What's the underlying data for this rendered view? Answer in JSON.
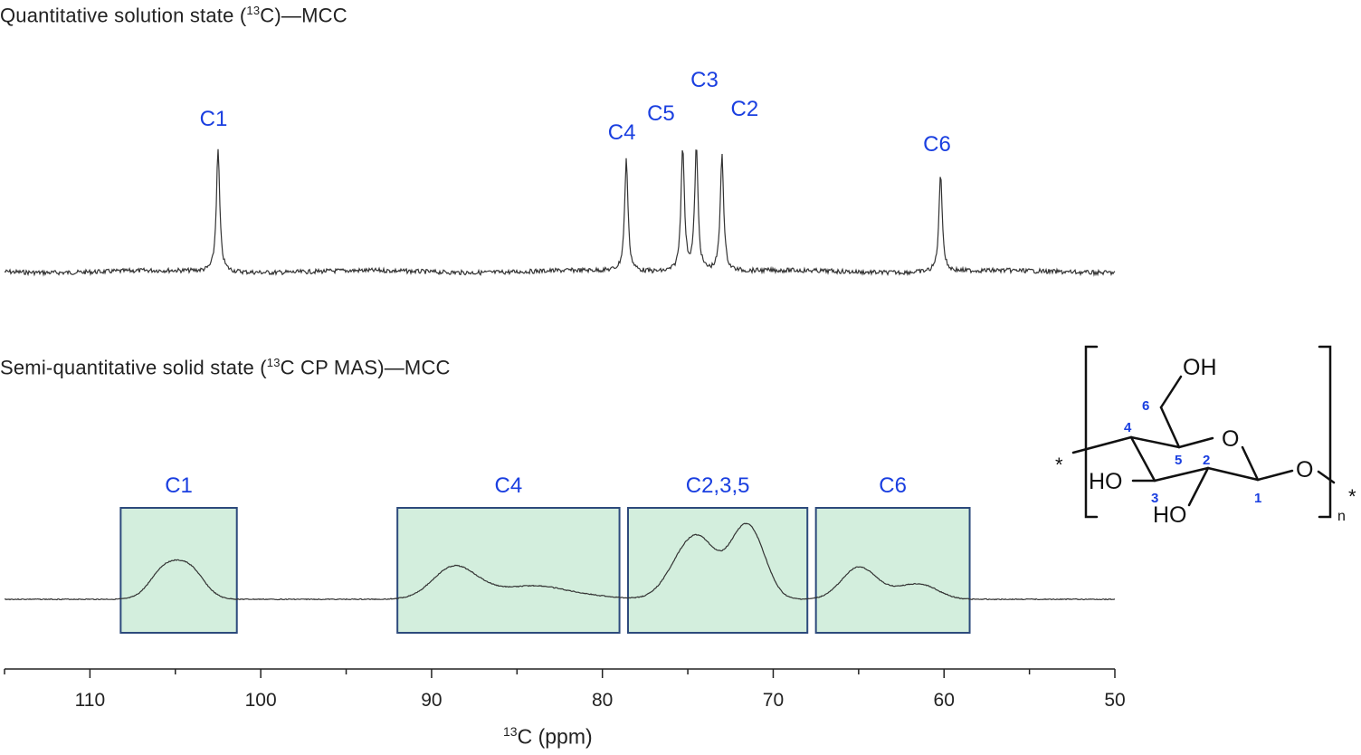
{
  "chart_data": {
    "type": "line",
    "panels": [
      {
        "title_main": "Quantitative solution state (",
        "title_sup": "13",
        "title_tail": "C)—MCC",
        "peaks": [
          {
            "label": "C1",
            "ppm": 102.5
          },
          {
            "label": "C4",
            "ppm": 78.6
          },
          {
            "label": "C5",
            "ppm": 75.3
          },
          {
            "label": "C3",
            "ppm": 74.5
          },
          {
            "label": "C2",
            "ppm": 73.0
          },
          {
            "label": "C6",
            "ppm": 60.2
          }
        ]
      },
      {
        "title_main": "Semi-quantitative solid state (",
        "title_sup": "13",
        "title_tail": "C CP MAS)—MCC",
        "regions": [
          {
            "label": "C1",
            "from": 108.2,
            "to": 101.4
          },
          {
            "label": "C4",
            "from": 92.0,
            "to": 79.0
          },
          {
            "label": "C2,3,5",
            "from": 78.5,
            "to": 68.0
          },
          {
            "label": "C6",
            "from": 67.5,
            "to": 58.5
          }
        ]
      }
    ],
    "x_axis": {
      "label_sup": "13",
      "label_main": "C (ppm)",
      "range": [
        115.0,
        50.0
      ],
      "ticks": [
        110,
        100,
        90,
        80,
        70,
        60,
        50
      ],
      "reversed": true
    },
    "colors": {
      "label": "#1a3fe0",
      "box_fill": "#d3eedd",
      "box_stroke": "#2d4a7c",
      "trace": "#333333"
    }
  },
  "structure": {
    "oh_top": "OH",
    "ho_left": "HO",
    "ho_bottom": "HO",
    "ring_o": "O",
    "link_o": "O",
    "star_left": "*",
    "star_right": "*",
    "subscript": "n",
    "numbers": [
      "1",
      "2",
      "3",
      "4",
      "5",
      "6"
    ]
  }
}
